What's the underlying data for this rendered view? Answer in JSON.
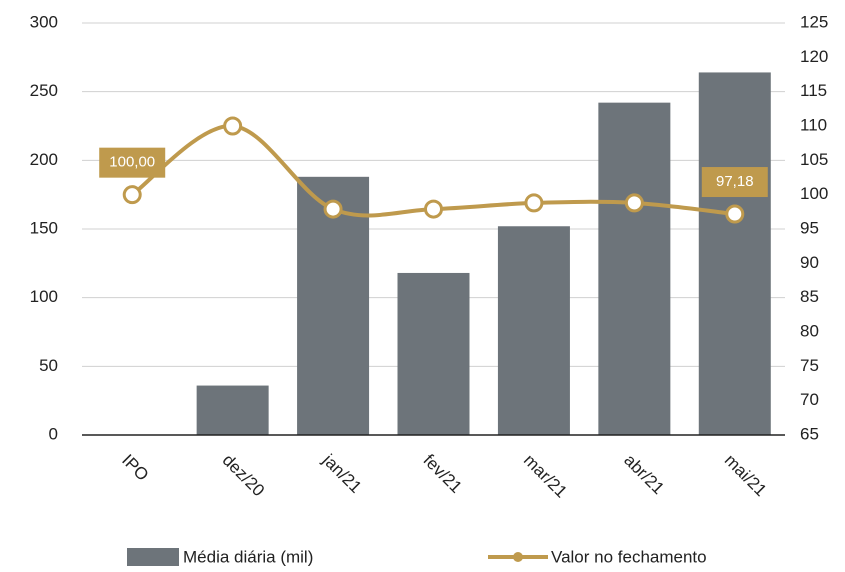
{
  "chart_data": {
    "type": "bar_line",
    "categories": [
      "IPO",
      "dez/20",
      "jan/21",
      "fev/21",
      "mar/21",
      "abr/21",
      "mai/21"
    ],
    "series": [
      {
        "name": "Média diária (mil)",
        "type": "bar",
        "color": "#6d747a",
        "values": [
          0,
          36,
          188,
          118,
          152,
          242,
          264
        ]
      },
      {
        "name": "Valor no fechamento",
        "type": "line",
        "axis": "y2",
        "color": "#bf9a4d",
        "values": [
          100.0,
          110,
          97.9,
          97.9,
          98.8,
          98.8,
          97.18
        ],
        "value_labels": [
          "100,00",
          null,
          null,
          null,
          null,
          null,
          "97,18"
        ]
      }
    ],
    "ylim": [
      0,
      300
    ],
    "yticks": [
      0,
      50,
      100,
      150,
      200,
      250,
      300
    ],
    "y2lim": [
      65,
      125
    ],
    "y2ticks": [
      65,
      70,
      75,
      80,
      85,
      90,
      95,
      100,
      105,
      110,
      115,
      120,
      125
    ],
    "grid": true,
    "legend": "bottom"
  }
}
